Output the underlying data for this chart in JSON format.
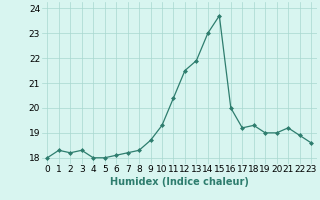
{
  "x": [
    0,
    1,
    2,
    3,
    4,
    5,
    6,
    7,
    8,
    9,
    10,
    11,
    12,
    13,
    14,
    15,
    16,
    17,
    18,
    19,
    20,
    21,
    22,
    23
  ],
  "y": [
    18.0,
    18.3,
    18.2,
    18.3,
    18.0,
    18.0,
    18.1,
    18.2,
    18.3,
    18.7,
    19.3,
    20.4,
    21.5,
    21.9,
    23.0,
    23.7,
    20.0,
    19.2,
    19.3,
    19.0,
    19.0,
    19.2,
    18.9,
    18.6
  ],
  "xlabel": "Humidex (Indice chaleur)",
  "ylim": [
    17.75,
    24.25
  ],
  "xlim": [
    -0.5,
    23.5
  ],
  "yticks": [
    18,
    19,
    20,
    21,
    22,
    23,
    24
  ],
  "xticks": [
    0,
    1,
    2,
    3,
    4,
    5,
    6,
    7,
    8,
    9,
    10,
    11,
    12,
    13,
    14,
    15,
    16,
    17,
    18,
    19,
    20,
    21,
    22,
    23
  ],
  "line_color": "#2e7d6e",
  "marker": "D",
  "marker_size": 2.0,
  "bg_color": "#d8f5f0",
  "grid_color": "#a8d8d0",
  "xlabel_fontsize": 7,
  "tick_fontsize": 6.5,
  "linewidth": 0.9
}
